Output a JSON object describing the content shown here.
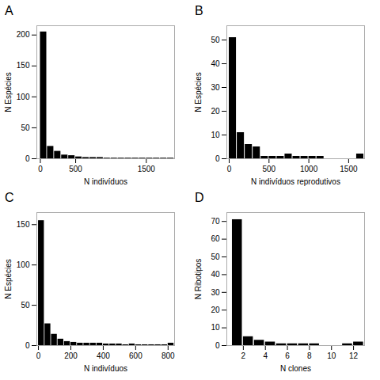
{
  "chart_data": [
    {
      "type": "bar",
      "title": "A",
      "xlabel": "N indivíduos",
      "ylabel": "N Espécies",
      "x": [
        0,
        100,
        200,
        300,
        400,
        500,
        600,
        700,
        800,
        900,
        1000,
        1100,
        1200,
        1300,
        1400,
        1500,
        1600,
        1700,
        1800
      ],
      "values": [
        205,
        20,
        12,
        6,
        5,
        3,
        2,
        2,
        2,
        1,
        1,
        1,
        1,
        1,
        1,
        1,
        1,
        1,
        1
      ],
      "color": "#000000",
      "xlim": [
        -50,
        1900
      ],
      "ylim": [
        0,
        215
      ],
      "xticks": [
        0,
        500,
        1500
      ],
      "yticks": [
        0,
        50,
        100,
        150,
        200
      ]
    },
    {
      "type": "bar",
      "title": "B",
      "xlabel": "N indivíduos reprodutivos",
      "ylabel": "N Espécies",
      "x": [
        0,
        100,
        200,
        300,
        400,
        500,
        600,
        700,
        800,
        900,
        1000,
        1100,
        1200,
        1300,
        1400,
        1500,
        1600
      ],
      "values": [
        51,
        11,
        6,
        5,
        1,
        1,
        1,
        2,
        1,
        1,
        1,
        1,
        0,
        0,
        0,
        0,
        2
      ],
      "color": "#000000",
      "xlim": [
        -30,
        1700
      ],
      "ylim": [
        0,
        56
      ],
      "xticks": [
        0,
        500,
        1000,
        1500
      ],
      "yticks": [
        0,
        10,
        20,
        30,
        40,
        50
      ]
    },
    {
      "type": "bar",
      "title": "C",
      "xlabel": "N indivíduos",
      "ylabel": "N Espécies",
      "x": [
        0,
        40,
        80,
        120,
        160,
        200,
        240,
        280,
        320,
        360,
        400,
        440,
        480,
        520,
        560,
        600,
        640,
        680,
        720,
        760,
        800
      ],
      "values": [
        155,
        27,
        14,
        8,
        5,
        4,
        3,
        3,
        3,
        3,
        2,
        2,
        2,
        1,
        2,
        1,
        1,
        1,
        1,
        1,
        3
      ],
      "color": "#000000",
      "xlim": [
        -10,
        840
      ],
      "ylim": [
        0,
        165
      ],
      "xticks": [
        0,
        200,
        400,
        600,
        800
      ],
      "yticks": [
        0,
        50,
        100,
        150
      ]
    },
    {
      "type": "bar",
      "title": "D",
      "xlabel": "N clones",
      "ylabel": "N Ribotipos",
      "x": [
        1,
        2,
        3,
        4,
        5,
        6,
        7,
        8,
        9,
        10,
        11,
        12
      ],
      "values": [
        71,
        5,
        3,
        2,
        1,
        1,
        1,
        1,
        0,
        0,
        1,
        2
      ],
      "color": "#000000",
      "xlim": [
        0.5,
        13
      ],
      "ylim": [
        0,
        75
      ],
      "xticks": [
        2,
        4,
        6,
        8,
        10,
        12
      ],
      "yticks": [
        0,
        10,
        20,
        30,
        40,
        50,
        60,
        70
      ]
    }
  ]
}
